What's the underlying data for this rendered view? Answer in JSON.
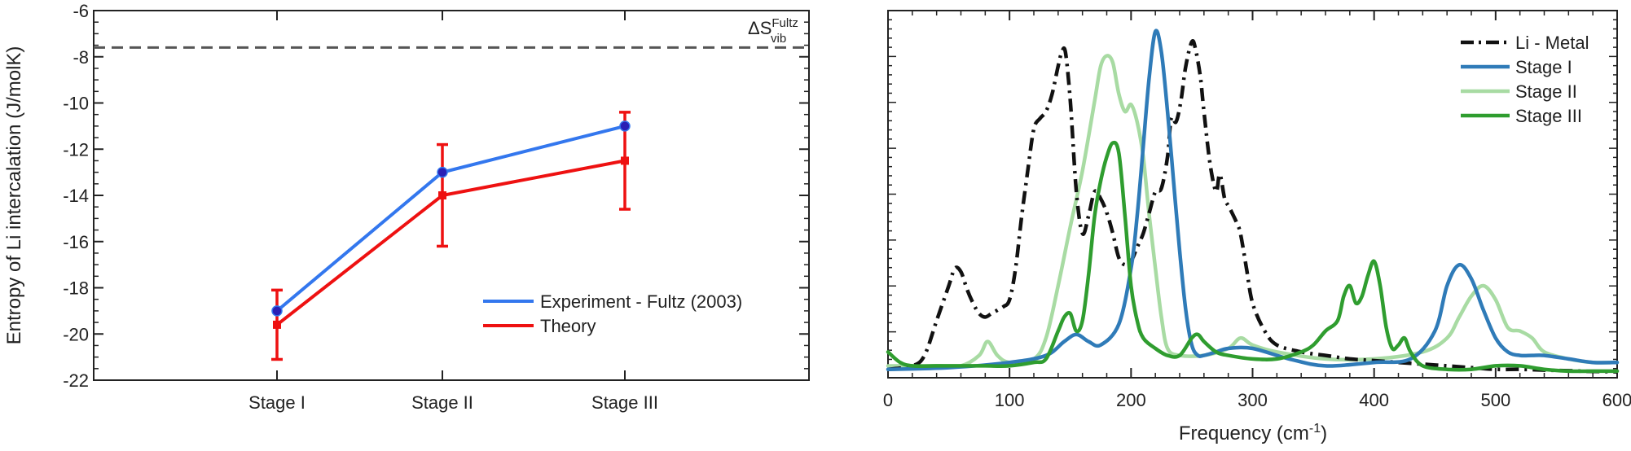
{
  "chart_data": [
    {
      "type": "line",
      "ylabel": "Entropy of Li intercalation (J/molK)",
      "categories": [
        "Stage I",
        "Stage II",
        "Stage III"
      ],
      "ylim": [
        -22,
        -6
      ],
      "yticks": [
        -6,
        -8,
        -10,
        -12,
        -14,
        -16,
        -18,
        -20,
        -22
      ],
      "series": [
        {
          "name": "Experiment - Fultz (2003)",
          "color": "#3377ee",
          "marker": "circle",
          "marker_color": "#2a1fb5",
          "values": [
            -19.0,
            -13.0,
            -11.0
          ]
        },
        {
          "name": "Theory",
          "color": "#ee1111",
          "marker": "square",
          "values": [
            -19.6,
            -14.0,
            -12.5
          ],
          "error": [
            1.5,
            2.2,
            2.1
          ]
        }
      ],
      "reference_line": {
        "value": -7.6,
        "label_base": "ΔS",
        "label_sup": "Fultz",
        "label_sub": "vib",
        "color": "#555555"
      },
      "legend_position": "bottom-right"
    },
    {
      "type": "line",
      "xlabel": "Frequency (cm",
      "xlabel_sup": "-1",
      "xlabel_close": ")",
      "xlim": [
        0,
        600
      ],
      "xticks": [
        0,
        100,
        200,
        300,
        400,
        500,
        600
      ],
      "ylim": [
        0,
        1
      ],
      "y_ticks_labeled": false,
      "legend_position": "top-right",
      "series": [
        {
          "name": "Li - Metal",
          "color": "#111111",
          "dash": "dashdot",
          "x": [
            0,
            20,
            30,
            40,
            50,
            55,
            60,
            65,
            70,
            75,
            80,
            85,
            90,
            95,
            100,
            105,
            110,
            115,
            120,
            125,
            130,
            135,
            140,
            143,
            146,
            150,
            155,
            160,
            165,
            170,
            175,
            180,
            185,
            190,
            195,
            200,
            205,
            210,
            215,
            220,
            225,
            230,
            233,
            237,
            241,
            245,
            250,
            253,
            257,
            260,
            265,
            270,
            273,
            277,
            280,
            283,
            287,
            290,
            295,
            300,
            310,
            320,
            340,
            360,
            380,
            400,
            420,
            440,
            460,
            480,
            500,
            520,
            540,
            560,
            580,
            600
          ],
          "y": [
            0.01,
            0.02,
            0.05,
            0.15,
            0.25,
            0.3,
            0.29,
            0.24,
            0.2,
            0.17,
            0.16,
            0.17,
            0.18,
            0.19,
            0.21,
            0.3,
            0.45,
            0.58,
            0.7,
            0.73,
            0.75,
            0.8,
            0.88,
            0.92,
            0.92,
            0.78,
            0.52,
            0.4,
            0.45,
            0.52,
            0.5,
            0.46,
            0.4,
            0.33,
            0.31,
            0.32,
            0.36,
            0.4,
            0.46,
            0.52,
            0.53,
            0.62,
            0.73,
            0.72,
            0.78,
            0.88,
            0.95,
            0.93,
            0.85,
            0.75,
            0.6,
            0.52,
            0.57,
            0.5,
            0.48,
            0.46,
            0.43,
            0.4,
            0.3,
            0.2,
            0.12,
            0.08,
            0.06,
            0.05,
            0.04,
            0.035,
            0.03,
            0.025,
            0.02,
            0.015,
            0.01,
            0.01,
            0.008,
            0.006,
            0.004,
            0.003
          ]
        },
        {
          "name": "Stage I",
          "color": "#2f7bb8",
          "dash": "solid",
          "x": [
            0,
            50,
            100,
            130,
            145,
            155,
            165,
            175,
            190,
            200,
            205,
            210,
            215,
            220,
            225,
            230,
            235,
            240,
            245,
            250,
            255,
            260,
            270,
            280,
            300,
            330,
            360,
            400,
            430,
            450,
            460,
            470,
            480,
            490,
            500,
            510,
            520,
            530,
            540,
            560,
            580,
            600
          ],
          "y": [
            0.01,
            0.015,
            0.03,
            0.05,
            0.09,
            0.11,
            0.09,
            0.08,
            0.14,
            0.3,
            0.45,
            0.65,
            0.85,
            0.98,
            0.92,
            0.75,
            0.55,
            0.35,
            0.18,
            0.08,
            0.05,
            0.05,
            0.06,
            0.07,
            0.07,
            0.04,
            0.02,
            0.03,
            0.04,
            0.12,
            0.25,
            0.31,
            0.27,
            0.18,
            0.1,
            0.06,
            0.05,
            0.05,
            0.05,
            0.04,
            0.03,
            0.03
          ]
        },
        {
          "name": "Stage II",
          "color": "#a8dba3",
          "dash": "solid",
          "x": [
            0,
            40,
            60,
            75,
            82,
            90,
            100,
            120,
            130,
            140,
            150,
            160,
            170,
            175,
            180,
            185,
            190,
            195,
            200,
            205,
            210,
            215,
            220,
            225,
            230,
            240,
            260,
            280,
            290,
            300,
            320,
            360,
            400,
            440,
            460,
            470,
            480,
            490,
            500,
            510,
            520,
            530,
            540,
            560,
            580,
            600
          ],
          "y": [
            0.02,
            0.02,
            0.02,
            0.05,
            0.09,
            0.05,
            0.03,
            0.04,
            0.1,
            0.25,
            0.42,
            0.58,
            0.78,
            0.88,
            0.91,
            0.89,
            0.8,
            0.75,
            0.77,
            0.72,
            0.62,
            0.45,
            0.3,
            0.16,
            0.07,
            0.05,
            0.05,
            0.07,
            0.1,
            0.08,
            0.06,
            0.04,
            0.04,
            0.06,
            0.1,
            0.16,
            0.22,
            0.25,
            0.21,
            0.13,
            0.12,
            0.1,
            0.06,
            0.04,
            0.03,
            0.03
          ]
        },
        {
          "name": "Stage III",
          "color": "#2f9d2f",
          "dash": "solid",
          "x": [
            0,
            10,
            20,
            40,
            60,
            80,
            100,
            120,
            130,
            140,
            145,
            150,
            155,
            160,
            165,
            170,
            175,
            180,
            185,
            190,
            195,
            200,
            205,
            210,
            220,
            230,
            240,
            250,
            255,
            260,
            270,
            280,
            300,
            320,
            340,
            350,
            360,
            370,
            375,
            380,
            385,
            390,
            395,
            400,
            405,
            410,
            415,
            420,
            425,
            430,
            440,
            460,
            480,
            500,
            520,
            540,
            560,
            580,
            600
          ],
          "y": [
            0.06,
            0.03,
            0.02,
            0.02,
            0.02,
            0.02,
            0.02,
            0.03,
            0.04,
            0.12,
            0.16,
            0.17,
            0.12,
            0.15,
            0.28,
            0.45,
            0.55,
            0.62,
            0.66,
            0.63,
            0.45,
            0.25,
            0.15,
            0.1,
            0.07,
            0.05,
            0.05,
            0.1,
            0.11,
            0.09,
            0.06,
            0.05,
            0.04,
            0.04,
            0.06,
            0.08,
            0.12,
            0.15,
            0.22,
            0.25,
            0.2,
            0.22,
            0.28,
            0.32,
            0.25,
            0.13,
            0.07,
            0.08,
            0.1,
            0.06,
            0.02,
            0.01,
            0.01,
            0.02,
            0.02,
            0.01,
            0.005,
            0.005,
            0.005
          ]
        }
      ]
    }
  ]
}
